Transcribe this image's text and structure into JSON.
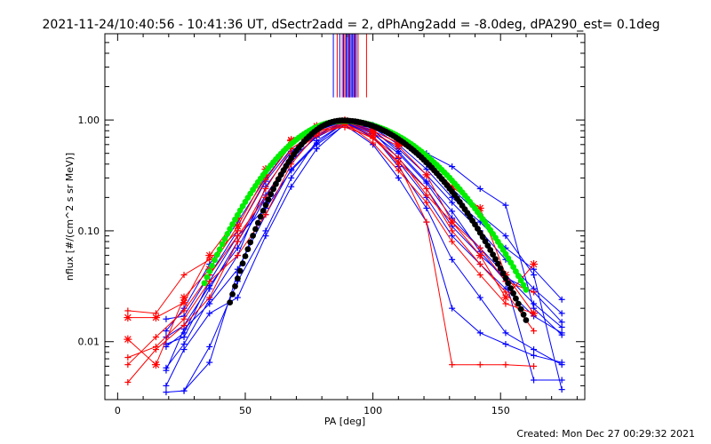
{
  "chart_data": {
    "type": "line",
    "title": "2021-11-24/10:40:56 - 10:41:36 UT, dSectr2add = 2, dPhAng2add = -8.0deg, dPA290_est=  0.1deg",
    "xlabel": "PA [deg]",
    "ylabel": "nflux [#/(cm^2 s sr MeV)]",
    "xlim": [
      -5,
      183
    ],
    "ylim": [
      0.003,
      6.0
    ],
    "yscale": "log",
    "xticks": [
      0,
      50,
      100,
      150
    ],
    "xtick_labels": [
      "0",
      "50",
      "100",
      "150"
    ],
    "yticks": [
      0.01,
      0.1,
      1.0
    ],
    "ytick_labels": [
      "0.01",
      "0.10",
      "1.00"
    ],
    "footer": "Created: Mon Dec 27 00:29:32 2021",
    "grid": false,
    "colors": {
      "blue": "#0000ff",
      "red": "#ff0000",
      "green": "#00ee00",
      "black": "#000000"
    },
    "vertical_lines": {
      "ymin": 1.6,
      "ymax": 6.0,
      "blue": [
        84.5,
        87,
        88.5,
        89.5,
        90,
        90.5,
        91,
        91.5,
        92,
        92.5,
        93,
        93.5
      ],
      "red": [
        86,
        88,
        89,
        90.8,
        92.8,
        94.2,
        97.5
      ]
    },
    "fits": [
      {
        "color": "green",
        "center": 88.5,
        "sigma_low": 21,
        "sigma_high": 27,
        "peak": 0.98,
        "xmin": 34,
        "xmax": 160
      },
      {
        "color": "black",
        "center": 88.0,
        "sigma_low": 16,
        "sigma_high": 25,
        "peak": 0.99,
        "xmin": 44,
        "xmax": 160
      }
    ],
    "series": [
      {
        "color": "blue",
        "marker": "plus",
        "points": [
          [
            19,
            0.0055
          ],
          [
            26,
            0.013
          ],
          [
            36,
            0.022
          ],
          [
            47,
            0.045
          ],
          [
            58,
            0.14
          ],
          [
            68,
            0.36
          ],
          [
            78,
            0.62
          ],
          [
            89,
            0.95
          ],
          [
            100,
            0.72
          ],
          [
            110,
            0.38
          ],
          [
            121,
            0.16
          ],
          [
            131,
            0.055
          ],
          [
            142,
            0.025
          ],
          [
            152,
            0.012
          ],
          [
            163,
            0.0085
          ],
          [
            174,
            0.0062
          ]
        ]
      },
      {
        "color": "blue",
        "marker": "plus",
        "points": [
          [
            19,
            0.0095
          ],
          [
            26,
            0.011
          ],
          [
            36,
            0.03
          ],
          [
            47,
            0.08
          ],
          [
            58,
            0.21
          ],
          [
            68,
            0.45
          ],
          [
            78,
            0.7
          ],
          [
            89,
            0.94
          ],
          [
            100,
            0.7
          ],
          [
            110,
            0.42
          ],
          [
            121,
            0.2
          ],
          [
            131,
            0.09
          ],
          [
            142,
            0.05
          ],
          [
            152,
            0.03
          ],
          [
            163,
            0.017
          ],
          [
            174,
            0.012
          ]
        ]
      },
      {
        "color": "blue",
        "marker": "plus",
        "points": [
          [
            19,
            0.016
          ],
          [
            26,
            0.017
          ],
          [
            36,
            0.04
          ],
          [
            47,
            0.1
          ],
          [
            58,
            0.28
          ],
          [
            68,
            0.55
          ],
          [
            78,
            0.78
          ],
          [
            89,
            0.95
          ],
          [
            100,
            0.75
          ],
          [
            110,
            0.5
          ],
          [
            121,
            0.27
          ],
          [
            131,
            0.13
          ],
          [
            142,
            0.07
          ],
          [
            152,
            0.04
          ],
          [
            163,
            0.022
          ],
          [
            174,
            0.0135
          ]
        ]
      },
      {
        "color": "blue",
        "marker": "plus",
        "points": [
          [
            19,
            0.0125
          ],
          [
            26,
            0.02
          ],
          [
            36,
            0.05
          ],
          [
            47,
            0.12
          ],
          [
            58,
            0.3
          ],
          [
            68,
            0.6
          ],
          [
            78,
            0.82
          ],
          [
            89,
            0.96
          ],
          [
            100,
            0.8
          ],
          [
            110,
            0.55
          ],
          [
            121,
            0.32
          ],
          [
            131,
            0.18
          ],
          [
            142,
            0.1
          ],
          [
            152,
            0.055
          ],
          [
            163,
            0.03
          ],
          [
            174,
            0.018
          ]
        ]
      },
      {
        "color": "blue",
        "marker": "plus",
        "points": [
          [
            19,
            0.004
          ],
          [
            26,
            0.0085
          ],
          [
            36,
            0.018
          ],
          [
            47,
            0.025
          ],
          [
            58,
            0.09
          ],
          [
            68,
            0.25
          ],
          [
            78,
            0.55
          ],
          [
            89,
            0.92
          ],
          [
            100,
            0.85
          ],
          [
            110,
            0.6
          ],
          [
            121,
            0.36
          ],
          [
            131,
            0.2
          ],
          [
            142,
            0.12
          ],
          [
            152,
            0.07
          ],
          [
            163,
            0.045
          ],
          [
            174,
            0.024
          ]
        ]
      },
      {
        "color": "blue",
        "marker": "plus",
        "points": [
          [
            19,
            0.0035
          ],
          [
            26,
            0.0036
          ],
          [
            36,
            0.0065
          ],
          [
            47,
            0.042
          ],
          [
            58,
            0.18
          ],
          [
            68,
            0.42
          ],
          [
            78,
            0.72
          ],
          [
            89,
            0.97
          ],
          [
            100,
            0.9
          ],
          [
            110,
            0.65
          ],
          [
            121,
            0.4
          ],
          [
            131,
            0.24
          ],
          [
            142,
            0.14
          ],
          [
            152,
            0.09
          ],
          [
            163,
            0.04
          ],
          [
            174,
            0.0037
          ]
        ]
      },
      {
        "color": "blue",
        "marker": "plus",
        "points": [
          [
            19,
            0.011
          ],
          [
            26,
            0.014
          ],
          [
            36,
            0.032
          ],
          [
            47,
            0.07
          ],
          [
            58,
            0.2
          ],
          [
            68,
            0.48
          ],
          [
            78,
            0.75
          ],
          [
            89,
            0.93
          ],
          [
            100,
            0.88
          ],
          [
            110,
            0.7
          ],
          [
            121,
            0.5
          ],
          [
            131,
            0.38
          ],
          [
            142,
            0.24
          ],
          [
            152,
            0.17
          ],
          [
            163,
            0.02
          ],
          [
            174,
            0.0115
          ]
        ]
      },
      {
        "color": "blue",
        "marker": "plus",
        "points": [
          [
            19,
            0.009
          ],
          [
            26,
            0.012
          ],
          [
            36,
            0.035
          ],
          [
            47,
            0.09
          ],
          [
            58,
            0.16
          ],
          [
            68,
            0.35
          ],
          [
            78,
            0.6
          ],
          [
            89,
            0.9
          ],
          [
            100,
            0.6
          ],
          [
            110,
            0.3
          ],
          [
            121,
            0.12
          ],
          [
            131,
            0.02
          ],
          [
            142,
            0.012
          ],
          [
            152,
            0.0095
          ],
          [
            163,
            0.0075
          ],
          [
            174,
            0.0065
          ]
        ]
      },
      {
        "color": "blue",
        "marker": "plus",
        "points": [
          [
            19,
            0.0058
          ],
          [
            26,
            0.0095
          ],
          [
            36,
            0.024
          ],
          [
            47,
            0.06
          ],
          [
            58,
            0.25
          ],
          [
            68,
            0.52
          ],
          [
            78,
            0.8
          ],
          [
            89,
            0.98
          ],
          [
            100,
            0.78
          ],
          [
            110,
            0.45
          ],
          [
            121,
            0.24
          ],
          [
            131,
            0.11
          ],
          [
            142,
            0.06
          ],
          [
            152,
            0.038
          ],
          [
            163,
            0.028
          ],
          [
            174,
            0.015
          ]
        ]
      },
      {
        "color": "blue",
        "marker": "plus",
        "points": [
          [
            26,
            0.0036
          ],
          [
            36,
            0.009
          ],
          [
            47,
            0.035
          ],
          [
            58,
            0.1
          ],
          [
            68,
            0.3
          ],
          [
            78,
            0.65
          ],
          [
            89,
            0.94
          ],
          [
            100,
            0.82
          ],
          [
            110,
            0.52
          ],
          [
            121,
            0.28
          ],
          [
            131,
            0.15
          ],
          [
            142,
            0.065
          ],
          [
            152,
            0.035
          ],
          [
            163,
            0.0045
          ],
          [
            174,
            0.0045
          ]
        ]
      },
      {
        "color": "red",
        "marker": "plus",
        "points": [
          [
            4,
            0.019
          ],
          [
            15,
            0.018
          ],
          [
            26,
            0.04
          ],
          [
            36,
            0.055
          ],
          [
            47,
            0.1
          ],
          [
            58,
            0.29
          ],
          [
            68,
            0.6
          ],
          [
            78,
            0.8
          ],
          [
            89,
            0.86
          ],
          [
            100,
            0.7
          ],
          [
            110,
            0.46
          ],
          [
            121,
            0.21
          ],
          [
            131,
            0.12
          ],
          [
            142,
            0.07
          ],
          [
            152,
            0.035
          ],
          [
            163,
            0.028
          ]
        ]
      },
      {
        "color": "red",
        "marker": "plus",
        "points": [
          [
            4,
            0.0072
          ],
          [
            15,
            0.009
          ],
          [
            26,
            0.016
          ],
          [
            36,
            0.035
          ],
          [
            47,
            0.06
          ],
          [
            58,
            0.14
          ],
          [
            68,
            0.4
          ],
          [
            78,
            0.75
          ],
          [
            89,
            0.92
          ],
          [
            100,
            0.72
          ],
          [
            110,
            0.4
          ],
          [
            121,
            0.12
          ],
          [
            131,
            0.0062
          ],
          [
            142,
            0.0062
          ],
          [
            152,
            0.0062
          ],
          [
            163,
            0.006
          ]
        ]
      },
      {
        "color": "red",
        "marker": "star",
        "points": [
          [
            4,
            0.0105
          ],
          [
            15,
            0.0062
          ],
          [
            26,
            0.025
          ],
          [
            36,
            0.045
          ],
          [
            47,
            0.11
          ],
          [
            58,
            0.32
          ],
          [
            68,
            0.65
          ],
          [
            78,
            0.85
          ],
          [
            89,
            0.97
          ],
          [
            100,
            0.76
          ],
          [
            110,
            0.58
          ],
          [
            121,
            0.32
          ],
          [
            131,
            0.12
          ],
          [
            142,
            0.06
          ],
          [
            152,
            0.025
          ],
          [
            163,
            0.05
          ]
        ]
      },
      {
        "color": "red",
        "marker": "plus",
        "points": [
          [
            4,
            0.0043
          ],
          [
            15,
            0.0085
          ],
          [
            26,
            0.014
          ],
          [
            36,
            0.025
          ],
          [
            47,
            0.08
          ],
          [
            58,
            0.24
          ],
          [
            68,
            0.55
          ],
          [
            78,
            0.78
          ],
          [
            89,
            0.95
          ],
          [
            100,
            0.62
          ],
          [
            110,
            0.35
          ],
          [
            121,
            0.18
          ],
          [
            131,
            0.08
          ],
          [
            142,
            0.04
          ],
          [
            152,
            0.022
          ],
          [
            163,
            0.018
          ]
        ]
      },
      {
        "color": "red",
        "marker": "plus",
        "points": [
          [
            4,
            0.0062
          ],
          [
            15,
            0.011
          ],
          [
            26,
            0.019
          ],
          [
            36,
            0.04
          ],
          [
            47,
            0.09
          ],
          [
            58,
            0.2
          ],
          [
            68,
            0.5
          ],
          [
            78,
            0.72
          ],
          [
            89,
            0.9
          ],
          [
            100,
            0.68
          ],
          [
            110,
            0.42
          ],
          [
            121,
            0.24
          ],
          [
            131,
            0.1
          ],
          [
            142,
            0.05
          ],
          [
            152,
            0.028
          ],
          [
            163,
            0.0125
          ]
        ]
      },
      {
        "color": "red",
        "marker": "star",
        "points": [
          [
            4,
            0.0165
          ],
          [
            15,
            0.0165
          ],
          [
            26,
            0.0225
          ],
          [
            36,
            0.06
          ],
          [
            47,
            0.13
          ],
          [
            58,
            0.36
          ],
          [
            68,
            0.66
          ],
          [
            78,
            0.88
          ],
          [
            89,
            0.99
          ],
          [
            100,
            0.8
          ],
          [
            110,
            0.62
          ],
          [
            121,
            0.44
          ],
          [
            131,
            0.25
          ],
          [
            142,
            0.16
          ],
          [
            152,
            0.04
          ],
          [
            163,
            0.018
          ]
        ]
      }
    ]
  }
}
